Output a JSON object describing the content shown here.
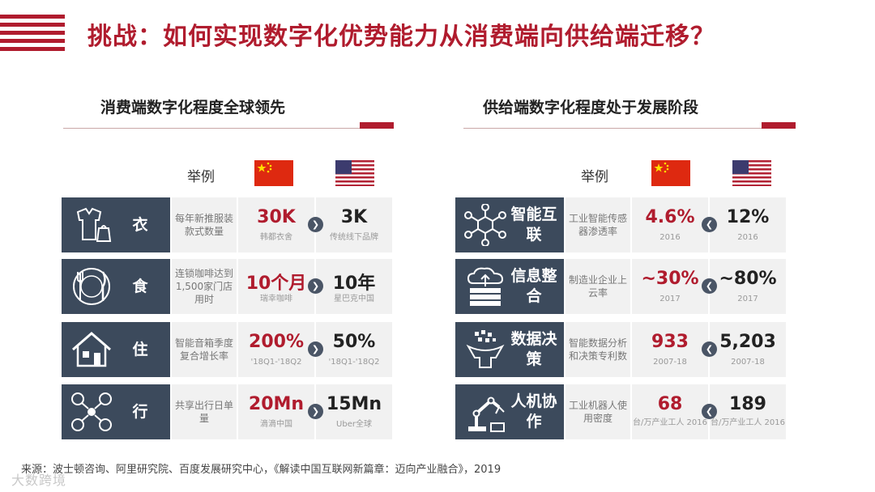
{
  "title": "挑战：如何实现数字化优势能力从消费端向供给端迁移？",
  "colors": {
    "accent": "#b01c2e",
    "category_bg": "#3c4a5c",
    "cell_bg": "#f1f1f1"
  },
  "left_panel": {
    "heading": "消费端数字化程度全球领先",
    "example_label": "举例",
    "rows": [
      {
        "icon": "clothing-icon",
        "category": "衣",
        "desc": "每年新推服装款式数量",
        "cn_value": "30K",
        "cn_sub": "韩都衣舍",
        "us_value": "3K",
        "us_sub": "传统线下品牌"
      },
      {
        "icon": "dining-icon",
        "category": "食",
        "desc": "连锁咖啡达到1,500家门店用时",
        "cn_value": "10个月",
        "cn_sub": "瑞幸咖啡",
        "us_value": "10年",
        "us_sub": "星巴克中国"
      },
      {
        "icon": "house-icon",
        "category": "住",
        "desc": "智能音箱季度复合增长率",
        "cn_value": "200%",
        "cn_sub": "'18Q1-'18Q2",
        "us_value": "50%",
        "us_sub": "'18Q1-'18Q2"
      },
      {
        "icon": "transport-icon",
        "category": "行",
        "desc": "共享出行日单量",
        "cn_value": "20Mn",
        "cn_sub": "滴滴中国",
        "us_value": "15Mn",
        "us_sub": "Uber全球"
      }
    ]
  },
  "right_panel": {
    "heading": "供给端数字化程度处于发展阶段",
    "example_label": "举例",
    "rows": [
      {
        "icon": "network-icon",
        "category": "智能互联",
        "desc": "工业智能传感器渗透率",
        "cn_value": "4.6%",
        "cn_sub": "2016",
        "us_value": "12%",
        "us_sub": "2016"
      },
      {
        "icon": "cloud-server-icon",
        "category": "信息整合",
        "desc": "制造业企业上云率",
        "cn_value": "~30%",
        "cn_sub": "2017",
        "us_value": "~80%",
        "us_sub": "2017"
      },
      {
        "icon": "data-funnel-icon",
        "category": "数据决策",
        "desc": "智能数据分析和决策专利数",
        "cn_value": "933",
        "cn_sub": "2007-18",
        "us_value": "5,203",
        "us_sub": "2007-18"
      },
      {
        "icon": "robot-arm-icon",
        "category": "人机协作",
        "desc": "工业机器人使用密度",
        "cn_value": "68",
        "cn_sub": "台/万产业工人 2016",
        "us_value": "189",
        "us_sub": "台/万产业工人 2016"
      }
    ]
  },
  "source": "来源：波士顿咨询、阿里研究院、百度发展研究中心，《解读中国互联网新篇章：迈向产业融合》，2019",
  "watermark": "大数跨境"
}
